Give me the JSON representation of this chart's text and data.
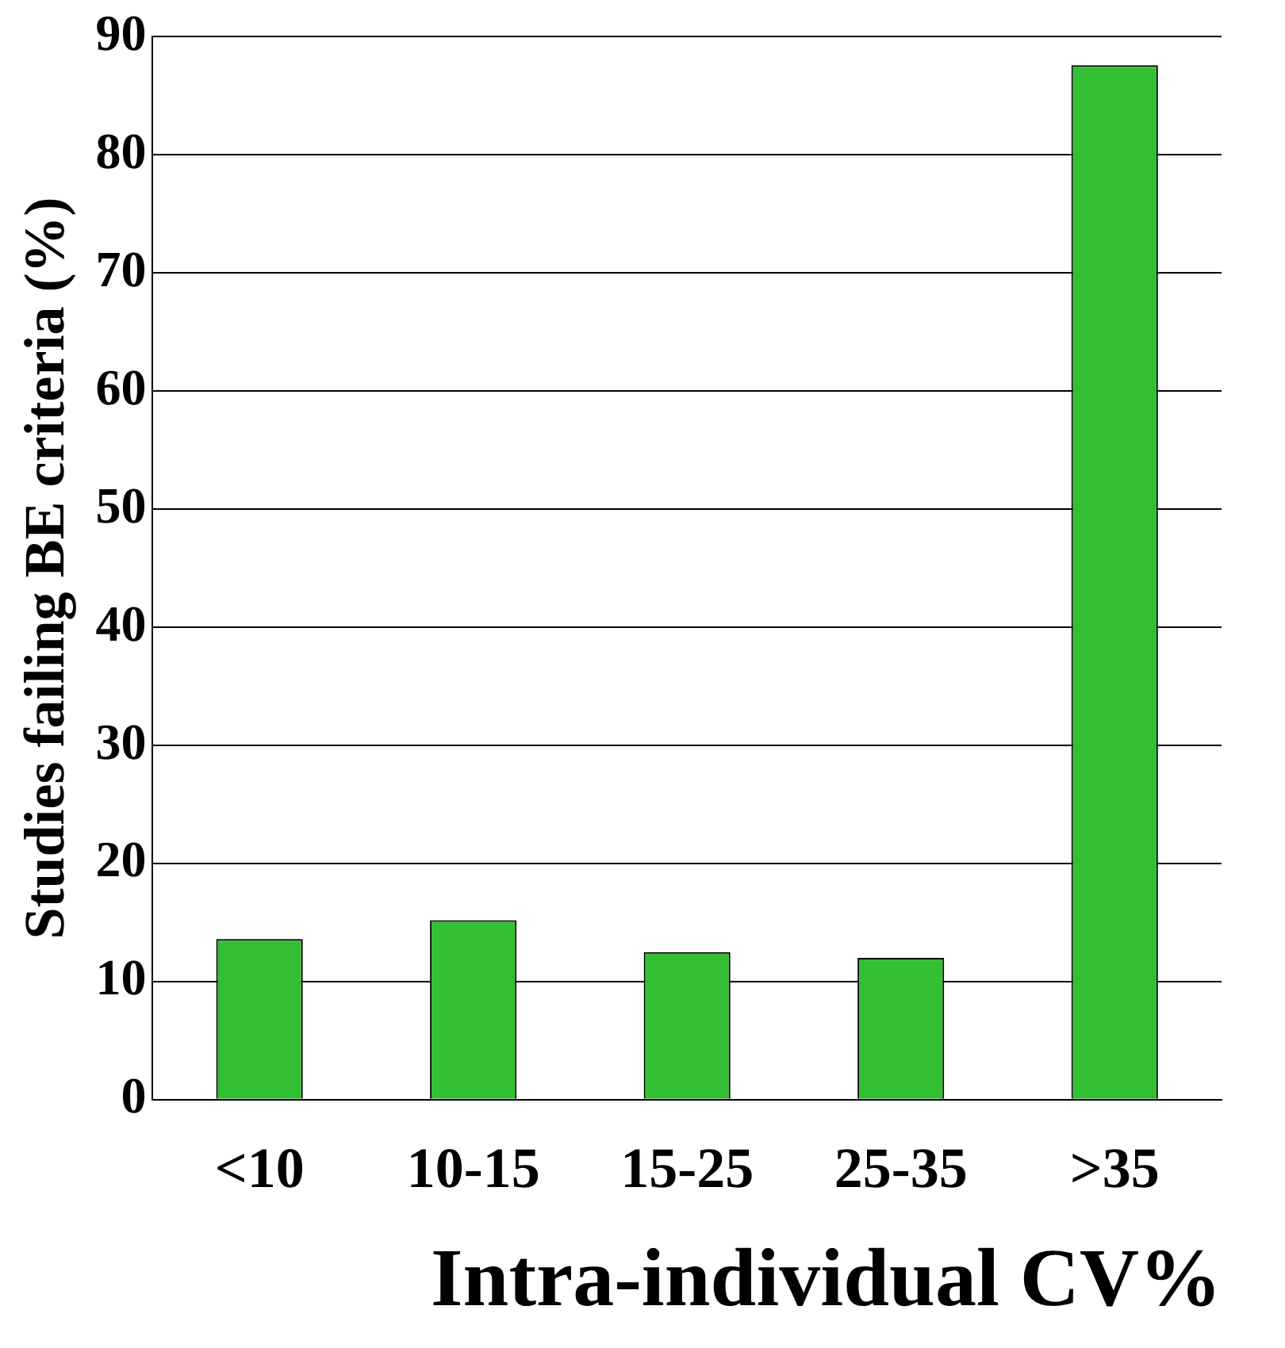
{
  "chart_data": {
    "type": "bar",
    "xlabel": "Intra-individual CV%",
    "ylabel": "Studies failing BE criteria (%)",
    "categories": [
      "<10",
      "10-15",
      "15-25",
      "25-35",
      ">35"
    ],
    "values": [
      13.6,
      15.2,
      12.5,
      12,
      87.6
    ],
    "color": "#33bf33",
    "ylim": [
      0,
      90
    ],
    "yticks": [
      0,
      10,
      20,
      30,
      40,
      50,
      60,
      70,
      80,
      90
    ],
    "grid": "y",
    "legend": false
  }
}
